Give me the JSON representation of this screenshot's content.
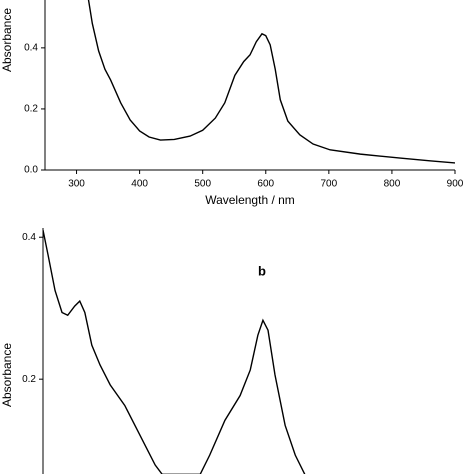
{
  "chart_data": [
    {
      "type": "line",
      "x_label": "Wavelength / nm",
      "y_label": "Absorbance",
      "xlim": [
        250,
        900
      ],
      "xticks": [
        300,
        400,
        500,
        600,
        700,
        800,
        900
      ],
      "ylim": [
        0,
        0.56
      ],
      "yticks": [
        {
          "value": 0,
          "label": "0.0"
        },
        0.2,
        0.4
      ],
      "series": [
        {
          "color": "#000000",
          "x": [
            319,
            325,
            335,
            345,
            354,
            370,
            385,
            400,
            415,
            433,
            455,
            480,
            500,
            520,
            535,
            551,
            565,
            575,
            585,
            594,
            600,
            607,
            615,
            623,
            635,
            654,
            675,
            702,
            750,
            813,
            860,
            900
          ],
          "values": [
            0.557,
            0.48,
            0.39,
            0.33,
            0.295,
            0.22,
            0.164,
            0.128,
            0.108,
            0.098,
            0.1,
            0.111,
            0.13,
            0.17,
            0.22,
            0.31,
            0.355,
            0.377,
            0.42,
            0.446,
            0.44,
            0.41,
            0.33,
            0.23,
            0.16,
            0.115,
            0.085,
            0.066,
            0.052,
            0.039,
            0.03,
            0.023
          ]
        }
      ]
    },
    {
      "type": "line",
      "annotation": "b",
      "y_label": "Absorbance",
      "xlim": [
        250,
        900
      ],
      "ylim": [
        0.065,
        0.413
      ],
      "yticks": [
        0.2,
        0.4
      ],
      "series": [
        {
          "color": "#000000",
          "x": [
            250,
            258,
            269,
            280,
            289,
            300,
            308,
            316,
            327,
            340,
            356,
            379,
            395,
            411,
            427,
            438,
            498,
            513,
            537,
            561,
            577,
            589,
            597,
            605,
            616,
            632,
            648,
            663
          ],
          "values": [
            0.41,
            0.375,
            0.325,
            0.294,
            0.29,
            0.303,
            0.31,
            0.294,
            0.248,
            0.22,
            0.192,
            0.163,
            0.135,
            0.107,
            0.079,
            0.066,
            0.066,
            0.093,
            0.142,
            0.177,
            0.213,
            0.262,
            0.283,
            0.269,
            0.206,
            0.135,
            0.093,
            0.066
          ]
        }
      ]
    }
  ]
}
